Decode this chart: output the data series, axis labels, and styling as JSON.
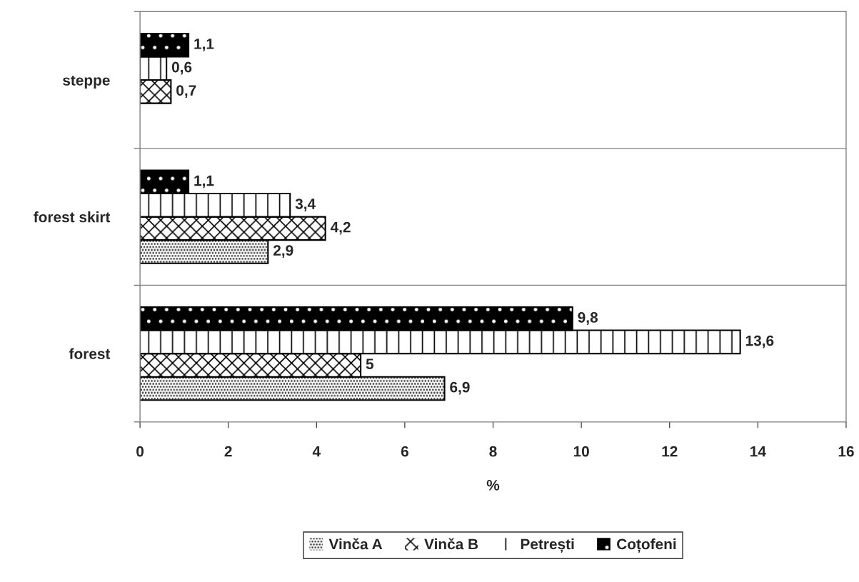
{
  "chart_data": {
    "type": "bar",
    "orientation": "horizontal",
    "categories": [
      "steppe",
      "forest skirt",
      "forest"
    ],
    "series": [
      {
        "name": "Vinča A",
        "color": "#ffffff",
        "values": [
          null,
          2.9,
          6.9
        ],
        "value_labels": [
          null,
          "2,9",
          "6,9"
        ]
      },
      {
        "name": "Vinča B",
        "color": "#ffffff",
        "values": [
          0.7,
          4.2,
          5
        ],
        "value_labels": [
          "0,7",
          "4,2",
          "5"
        ]
      },
      {
        "name": "Petrești",
        "color": "#ffffff",
        "values": [
          0.6,
          3.4,
          13.6
        ],
        "value_labels": [
          "0,6",
          "3,4",
          "13,6"
        ]
      },
      {
        "name": "Coțofeni",
        "color": "#000000",
        "values": [
          1.1,
          1.1,
          9.8
        ],
        "value_labels": [
          "1,1",
          "1,1",
          "9,8"
        ]
      }
    ],
    "xlabel": "%",
    "xlim": [
      0,
      16
    ],
    "xticks": [
      0,
      2,
      4,
      6,
      8,
      10,
      12,
      14,
      16
    ],
    "grid": "y",
    "legend": "bottom"
  }
}
